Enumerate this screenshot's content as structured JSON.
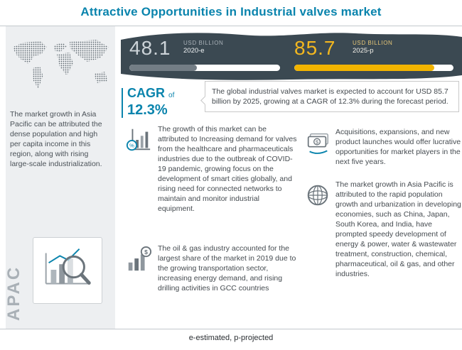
{
  "colors": {
    "accent": "#0a84ad",
    "gold": "#f2b400",
    "banner_dark": "#3b4952",
    "bar_gray": "#737d85"
  },
  "header": {
    "title": "Attractive Opportunities in Industrial valves market"
  },
  "footer": {
    "note": "e-estimated, p-projected"
  },
  "sidebar": {
    "region_label": "APAC",
    "description": "The market growth in Asia Pacific can be attributed the dense population and high per capita income in this region, along with rising large-scale industrialization."
  },
  "banner": {
    "current": {
      "value": "48.1",
      "unit": "USD BILLION",
      "year": "2020-e",
      "bar_pct": 45
    },
    "projected": {
      "value": "85.7",
      "unit": "USD BILLION",
      "year": "2025-p",
      "bar_pct": 88
    }
  },
  "cagr": {
    "label": "CAGR",
    "connector": "of",
    "value": "12.3%"
  },
  "callout": {
    "text": "The global industrial valves market is expected to account for USD 85.7 billion by 2025, growing at a CAGR of 12.3% during the forecast period."
  },
  "insights": [
    {
      "icon": "chart-percent-magnifier-icon",
      "text": "The growth of this market can be attributed to Increasing demand for valves from the healthcare and pharmaceuticals industries due to the outbreak of COVID-19 pandemic, growing focus on the development of smart cities globally, and rising need for connected networks to maintain and monitor industrial equipment."
    },
    {
      "icon": "bar-chart-dollar-icon",
      "text": "The oil & gas industry accounted for the largest share of the market in 2019 due to the growing transportation sector, increasing energy demand, and rising drilling activities in GCC countries"
    },
    {
      "icon": "money-notes-icon",
      "text": "Acquisitions, expansions, and new product launches would offer lucrative opportunities for market players in the next five years."
    },
    {
      "icon": "globe-icon",
      "text": "The market growth in Asia Pacific is attributed to the rapid population growth and urbanization in developing economies, such as China, Japan, South Korea, and India, have prompted speedy development of energy & power, water & wastewater treatment, construction, chemical, pharmaceutical, oil & gas, and other industries."
    }
  ],
  "chart_data": {
    "type": "bar",
    "title": "Attractive Opportunities in Industrial valves market",
    "categories": [
      "2020-e",
      "2025-p"
    ],
    "values": [
      48.1,
      85.7
    ],
    "unit": "USD Billion",
    "ylim": [
      0,
      100
    ],
    "bar_colors": [
      "#737d85",
      "#f2b400"
    ],
    "annotations": [
      "CAGR of 12.3% during the forecast period"
    ],
    "note": "e-estimated, p-projected"
  }
}
